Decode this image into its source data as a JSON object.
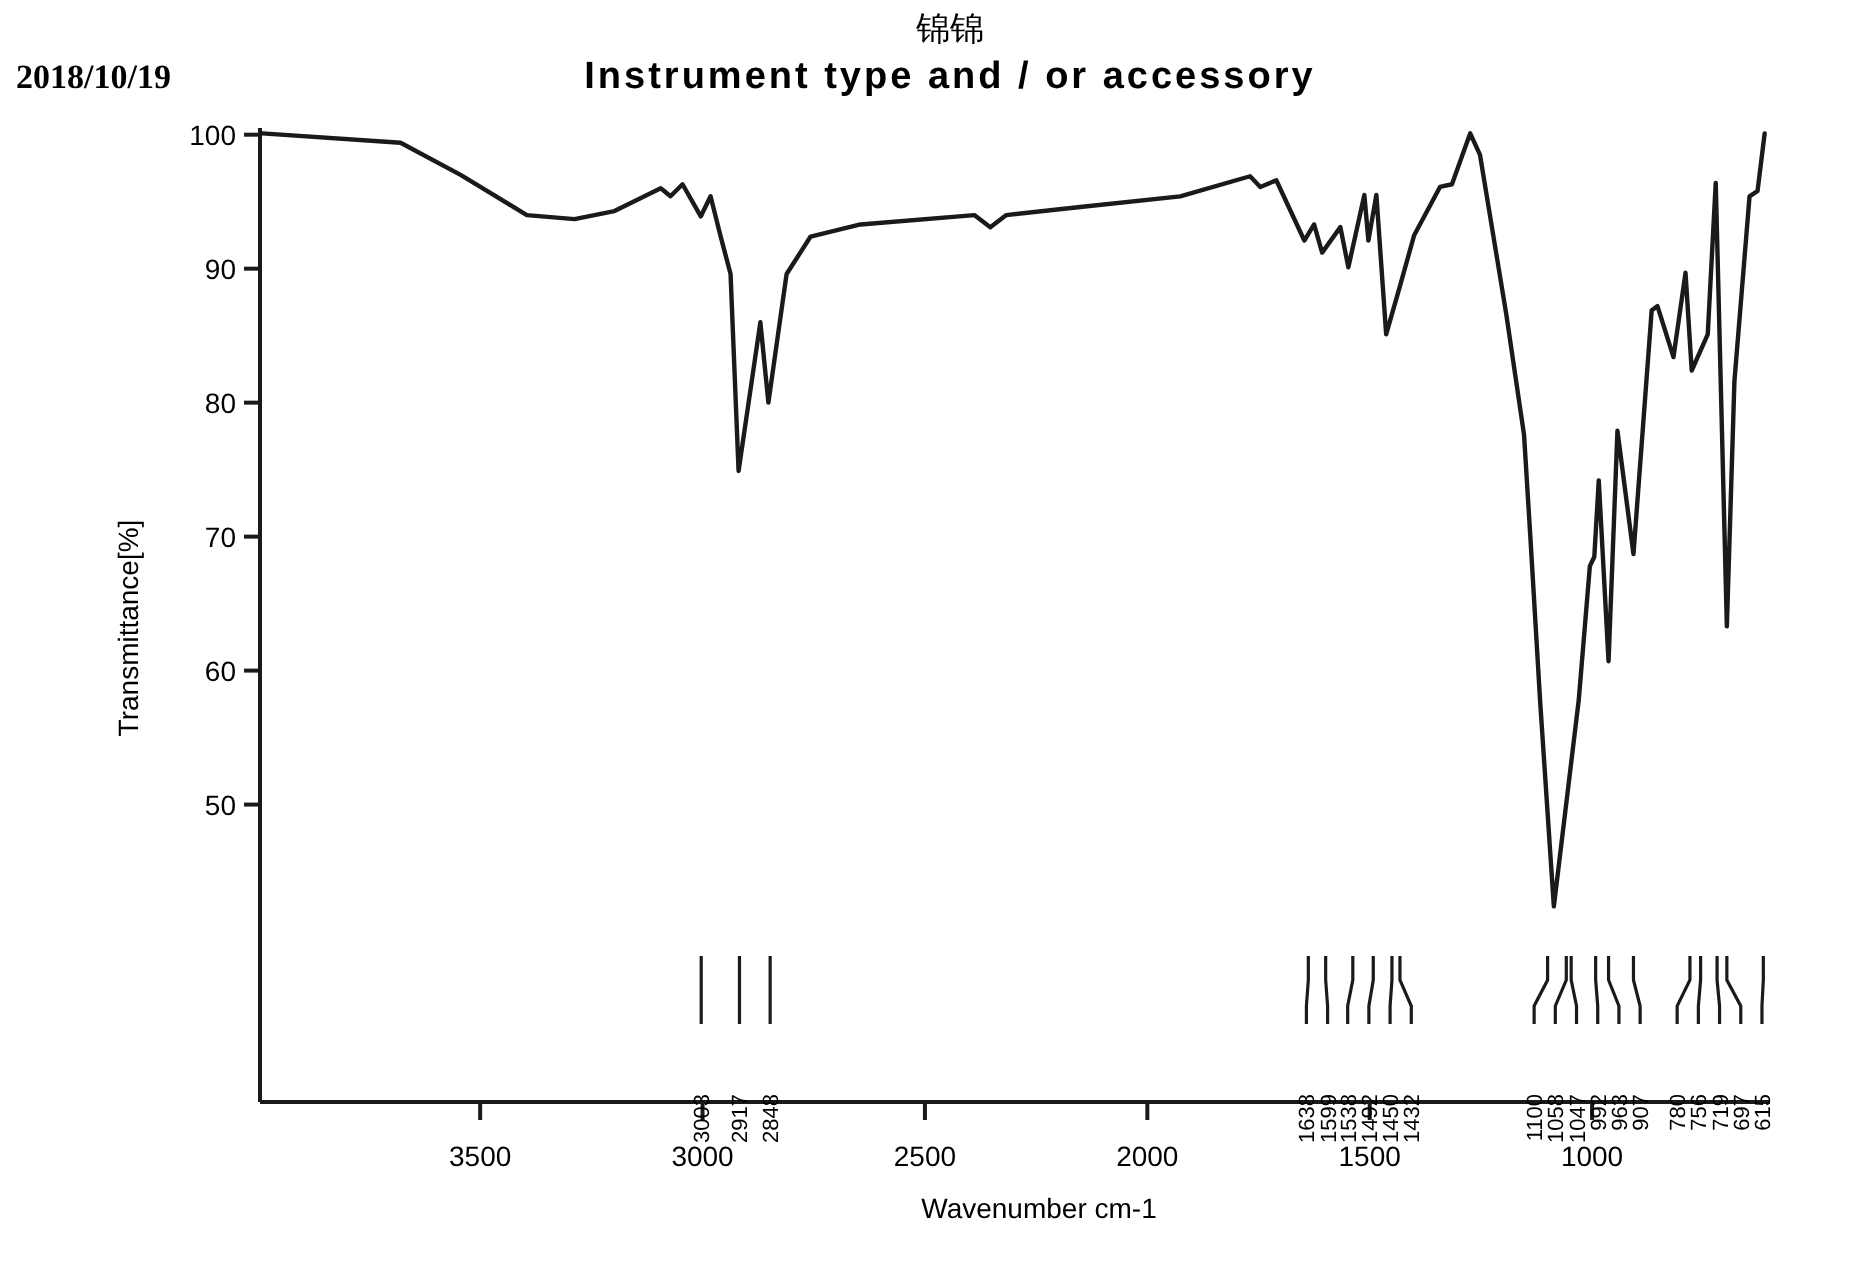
{
  "chart_data": {
    "type": "line",
    "title": "锦锦",
    "subtitle": "Instrument type and / or accessory",
    "xlabel": "Wavenumber cm-1",
    "ylabel": "Transmittance[%]",
    "xlim": [
      3995,
      600
    ],
    "xticks": [
      3500,
      3000,
      2500,
      2000,
      1500,
      1000
    ],
    "ylim": [
      27.8,
      100.5
    ],
    "yticks": [
      50,
      60,
      70,
      80,
      90,
      100
    ],
    "series": [
      {
        "color": "#1a1a1a",
        "x": [
          3990,
          3679,
          3544,
          3395,
          3288,
          3198,
          3094,
          3072,
          3045,
          3004,
          2982,
          2960,
          2937,
          2919,
          2870,
          2852,
          2811,
          2757,
          2645,
          2389,
          2353,
          2317,
          2151,
          1926,
          1769,
          1746,
          1710,
          1647,
          1625,
          1607,
          1566,
          1548,
          1512,
          1503,
          1485,
          1463,
          1432,
          1400,
          1342,
          1315,
          1274,
          1252,
          1193,
          1153,
          1139,
          1117,
          1086,
          1030,
          1005,
          995,
          985,
          963,
          943,
          907,
          866,
          853,
          817,
          790,
          776,
          740,
          722,
          697,
          680,
          646,
          628,
          612
        ],
        "values": [
          100.1,
          99.4,
          97.0,
          94.0,
          93.7,
          94.3,
          96.0,
          95.4,
          96.3,
          93.9,
          95.4,
          92.5,
          89.6,
          74.9,
          86.0,
          80.0,
          89.6,
          92.4,
          93.3,
          94.0,
          93.1,
          94.0,
          94.6,
          95.4,
          96.9,
          96.1,
          96.6,
          92.1,
          93.3,
          91.2,
          93.1,
          90.1,
          95.5,
          92.1,
          95.5,
          85.1,
          88.7,
          92.5,
          96.1,
          96.3,
          100.1,
          98.5,
          86.6,
          77.6,
          70.1,
          57.8,
          42.4,
          57.8,
          67.8,
          68.5,
          74.2,
          60.7,
          77.9,
          68.7,
          86.9,
          87.2,
          83.4,
          89.7,
          82.4,
          85.1,
          96.4,
          63.3,
          81.6,
          95.4,
          95.8,
          100.1
        ]
      }
    ],
    "annotations": [
      "2018/10/19",
      "3003",
      "2917",
      "2848",
      "1638",
      "1599",
      "1538",
      "1492",
      "1450",
      "1432",
      "1100",
      "1058",
      "1047",
      "992",
      "963",
      "907",
      "780",
      "756",
      "719",
      "697",
      "615"
    ]
  }
}
